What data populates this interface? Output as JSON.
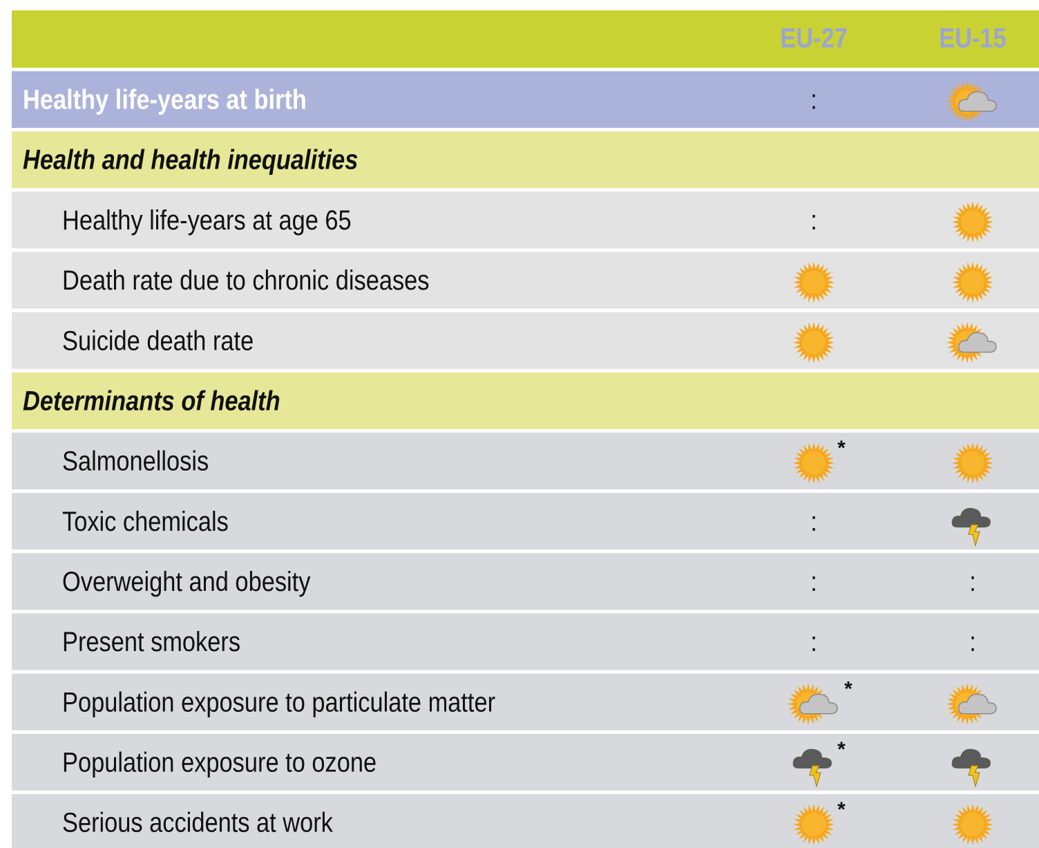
{
  "table": {
    "columns": [
      "EU-27",
      "EU-15"
    ],
    "header_color": "#c9d233",
    "headline": {
      "label": "Healthy life-years at birth",
      "color": "#acb3da",
      "cells": [
        ":",
        {
          "icon": "sun-cloud"
        }
      ]
    },
    "section_color": "#e6e898",
    "sections": [
      {
        "title": "Health and health inequalities",
        "row_color": "#e3e3e3",
        "rows": [
          {
            "label": "Healthy life-years at age 65",
            "cells": [
              ":",
              {
                "icon": "sun"
              }
            ]
          },
          {
            "label": "Death rate due to chronic diseases",
            "cells": [
              {
                "icon": "sun"
              },
              {
                "icon": "sun"
              }
            ]
          },
          {
            "label": "Suicide death rate",
            "cells": [
              {
                "icon": "sun"
              },
              {
                "icon": "sun-cloud"
              }
            ]
          }
        ]
      },
      {
        "title": "Determinants of health",
        "row_color": "#d8d9dc",
        "rows": [
          {
            "label": "Salmonellosis",
            "cells": [
              {
                "icon": "sun",
                "note": "*"
              },
              {
                "icon": "sun"
              }
            ]
          },
          {
            "label": "Toxic chemicals",
            "cells": [
              ":",
              {
                "icon": "storm"
              }
            ]
          },
          {
            "label": "Overweight and obesity",
            "cells": [
              ":",
              ":"
            ]
          },
          {
            "label": "Present smokers",
            "cells": [
              ":",
              ":"
            ]
          },
          {
            "label": "Population exposure to particulate matter",
            "cells": [
              {
                "icon": "sun-cloud",
                "note": "*"
              },
              {
                "icon": "sun-cloud"
              }
            ]
          },
          {
            "label": "Population exposure to ozone",
            "cells": [
              {
                "icon": "storm",
                "note": "*"
              },
              {
                "icon": "storm"
              }
            ]
          },
          {
            "label": "Serious accidents at work",
            "cells": [
              {
                "icon": "sun",
                "note": "*"
              },
              {
                "icon": "sun"
              }
            ]
          }
        ]
      }
    ]
  }
}
